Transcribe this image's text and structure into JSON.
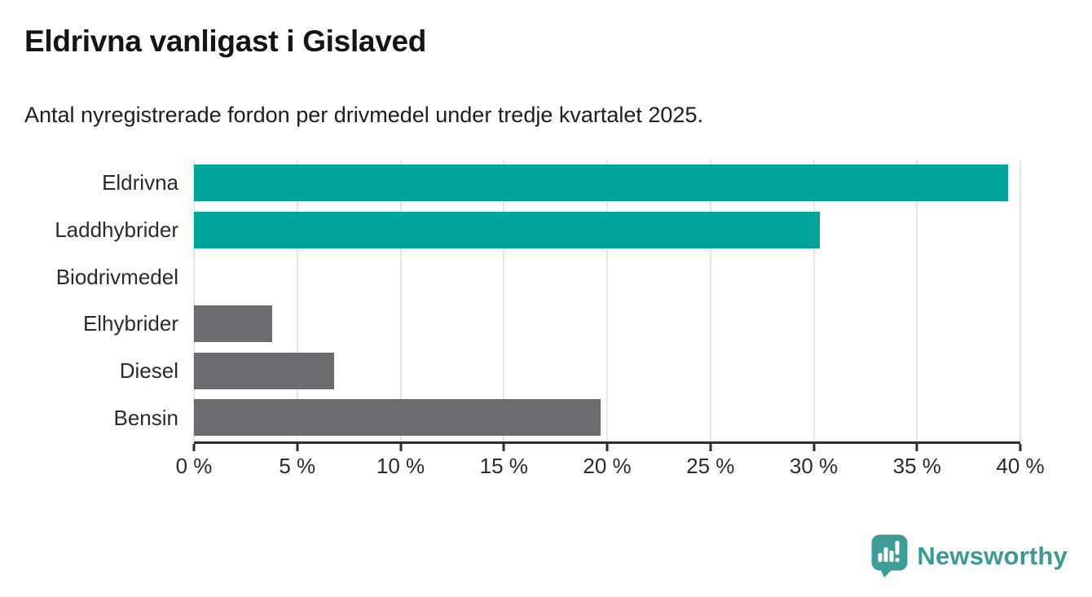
{
  "header": {
    "title": "Eldrivna vanligast i Gislaved",
    "subtitle": "Antal nyregistrerade fordon per drivmedel under tredje kvartalet 2025."
  },
  "chart_data": {
    "type": "bar",
    "orientation": "horizontal",
    "title": "Eldrivna vanligast i Gislaved",
    "subtitle": "Antal nyregistrerade fordon per drivmedel under tredje kvartalet 2025.",
    "categories": [
      "Eldrivna",
      "Laddhybrider",
      "Biodrivmedel",
      "Elhybrider",
      "Diesel",
      "Bensin"
    ],
    "values": [
      39.4,
      30.3,
      0,
      3.8,
      6.8,
      19.7
    ],
    "unit": "%",
    "xlim": [
      0,
      40
    ],
    "x_tick_values": [
      0,
      5,
      10,
      15,
      20,
      25,
      30,
      35,
      40
    ],
    "x_tick_labels": [
      "0 %",
      "5 %",
      "10 %",
      "15 %",
      "20 %",
      "25 %",
      "30 %",
      "35 %",
      "40 %"
    ],
    "bar_colors": [
      "#00a49b",
      "#00a49b",
      "#6b6b70",
      "#6b6b70",
      "#6b6b70",
      "#6b6b70"
    ],
    "grid": "vertical-light",
    "legend": "none",
    "value_labels": "none"
  },
  "style": {
    "highlight_color": "#00a49b",
    "base_color": "#6b6b70",
    "gridline_color": "#e5e5e5",
    "axis_color": "#2e2e2e",
    "text_color": "#2b2b2b"
  },
  "branding": {
    "logo_text": "Newsworthy",
    "logo_color": "#3c9a95",
    "logo_icon": "newsworthy-badge-icon"
  }
}
